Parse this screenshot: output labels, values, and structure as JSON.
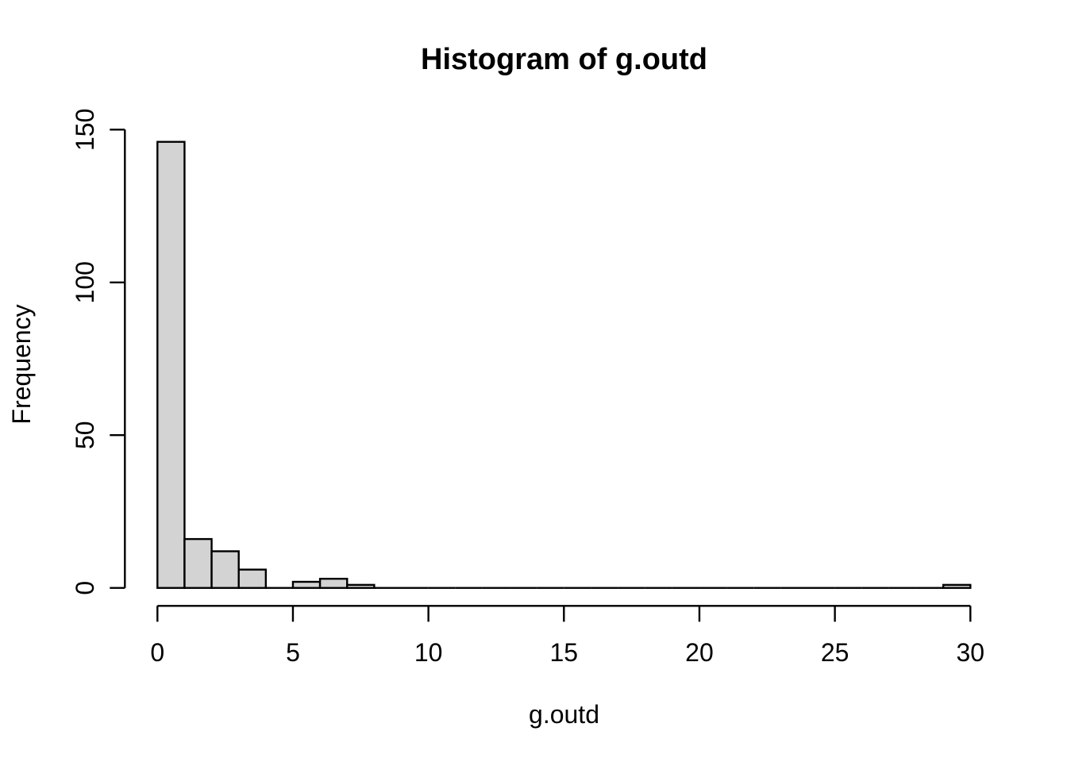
{
  "chart_data": {
    "type": "bar",
    "subtype": "histogram",
    "title": "Histogram of g.outd",
    "xlabel": "g.outd",
    "ylabel": "Frequency",
    "bin_start": 0,
    "bin_width": 1,
    "counts": [
      146,
      16,
      12,
      6,
      0,
      2,
      3,
      1,
      0,
      0,
      0,
      0,
      0,
      0,
      0,
      0,
      0,
      0,
      0,
      0,
      0,
      0,
      0,
      0,
      0,
      0,
      0,
      0,
      0,
      1
    ],
    "xticks": [
      0,
      5,
      10,
      15,
      20,
      25,
      30
    ],
    "yticks": [
      0,
      50,
      100,
      150
    ],
    "xlim": [
      0,
      30
    ],
    "ylim": [
      0,
      150
    ],
    "grid": false,
    "legend": "none",
    "bar_fill": "#d3d3d3",
    "bar_stroke": "#000000",
    "axis_color": "#000000",
    "background": "#ffffff"
  }
}
